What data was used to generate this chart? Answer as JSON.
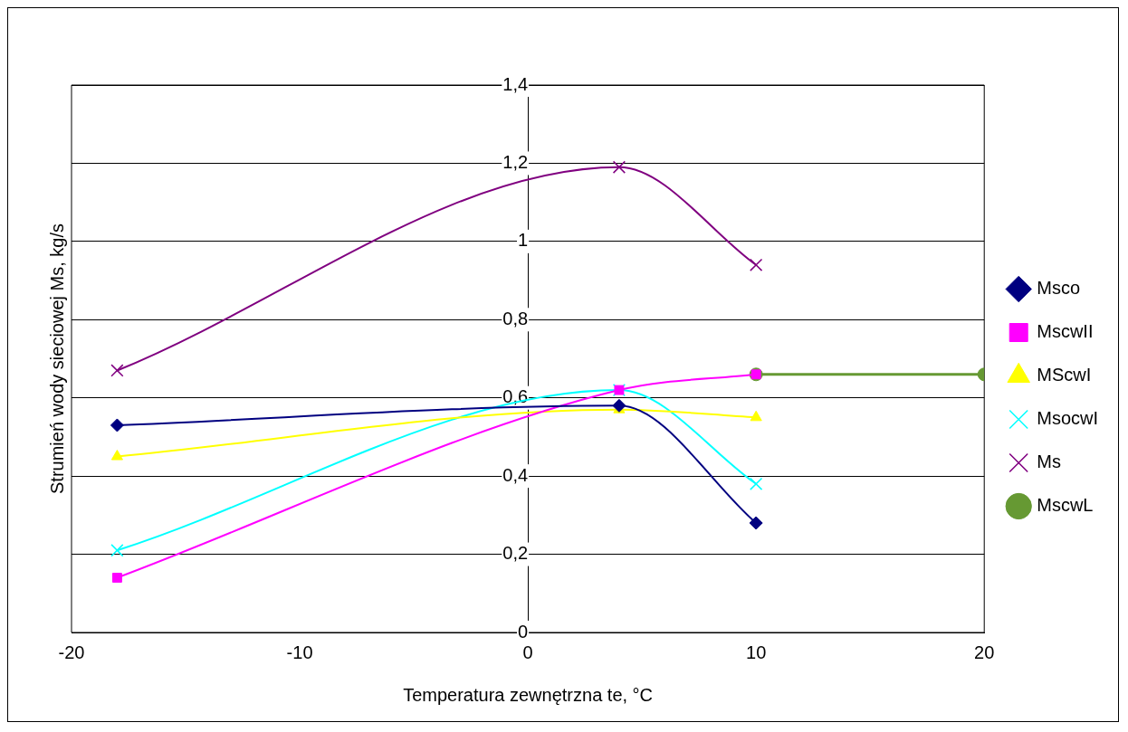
{
  "chart_data": {
    "type": "line",
    "xlabel": "Temperatura zewnętrzna te, °C",
    "ylabel": "Strumień wody sieciowej Ms, kg/s",
    "xlim": [
      -20,
      20
    ],
    "xticks": [
      -20,
      -10,
      0,
      10,
      20
    ],
    "ylim": [
      0,
      1.4
    ],
    "yticks": [
      0,
      {
        "value": 0.2,
        "label": "0,2"
      },
      {
        "value": 0.4,
        "label": "0,4"
      },
      {
        "value": 0.6,
        "label": "0,6"
      },
      {
        "value": 0.8,
        "label": "0,8"
      },
      1,
      {
        "value": 1.2,
        "label": "1,2"
      },
      {
        "value": 1.4,
        "label": "1,4"
      }
    ],
    "grid": "y",
    "legend": "right",
    "series": [
      {
        "name": "Msco",
        "color": "#000080",
        "marker": "diamond",
        "x": [
          -18,
          4,
          10
        ],
        "values": [
          0.53,
          0.58,
          0.28
        ]
      },
      {
        "name": "MscwII",
        "color": "#ff00ff",
        "marker": "square",
        "x": [
          -18,
          4,
          10
        ],
        "values": [
          0.14,
          0.62,
          0.66
        ]
      },
      {
        "name": "MScwI",
        "color": "#ffff00",
        "marker": "triangle",
        "x": [
          -18,
          4,
          10
        ],
        "values": [
          0.45,
          0.57,
          0.55
        ]
      },
      {
        "name": "MsocwI",
        "color": "#00ffff",
        "marker": "cross",
        "x": [
          -18,
          4,
          10
        ],
        "values": [
          0.21,
          0.62,
          0.38
        ]
      },
      {
        "name": "Ms",
        "color": "#800080",
        "marker": "cross",
        "x": [
          -18,
          4,
          10
        ],
        "values": [
          0.67,
          1.19,
          0.94
        ]
      },
      {
        "name": "MscwL",
        "color": "#669933",
        "marker": "circle",
        "x": [
          10,
          20
        ],
        "values": [
          0.66,
          0.66
        ]
      }
    ]
  }
}
